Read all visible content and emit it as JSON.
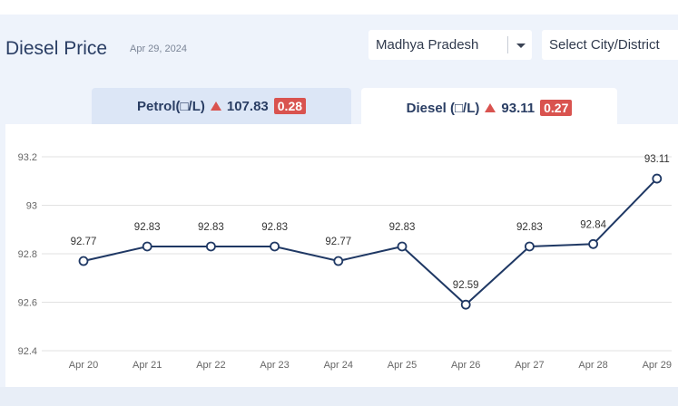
{
  "header": {
    "title": "Diesel Price",
    "date": "Apr 29, 2024",
    "state_select": "Madhya Pradesh",
    "city_select": "Select City/District"
  },
  "tabs": [
    {
      "label": "Petrol(□/L)",
      "price": "107.83",
      "change": "0.28",
      "active": false
    },
    {
      "label": "Diesel (□/L)",
      "price": "93.11",
      "change": "0.27",
      "active": true
    }
  ],
  "colors": {
    "line": "#1f3864",
    "up": "#d9534f",
    "grid": "#e2e2e2"
  },
  "chart_data": {
    "type": "line",
    "x": [
      "Apr 20",
      "Apr 21",
      "Apr 22",
      "Apr 23",
      "Apr 24",
      "Apr 25",
      "Apr 26",
      "Apr 27",
      "Apr 28",
      "Apr 29"
    ],
    "series": [
      {
        "values": [
          92.77,
          92.83,
          92.83,
          92.83,
          92.77,
          92.83,
          92.59,
          92.83,
          92.84,
          93.11
        ]
      }
    ],
    "yticks": [
      "92.4",
      "92.6",
      "92.8",
      "93",
      "93.2"
    ],
    "ylim": [
      92.4,
      93.2
    ],
    "grid": true
  }
}
